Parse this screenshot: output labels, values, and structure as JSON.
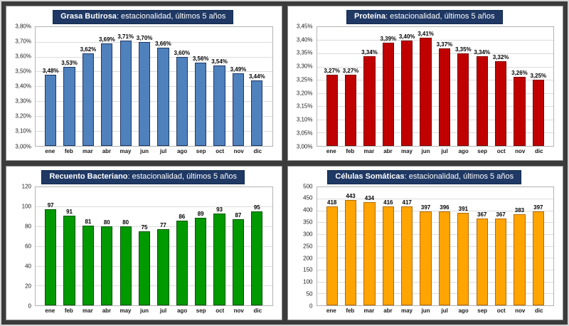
{
  "frame": {
    "background": "#3b3b3b",
    "panel_background": "#ffffff",
    "title_background": "#1f3864"
  },
  "chart_data": [
    {
      "type": "bar",
      "title": "Grasa Butirosa",
      "subtitle": ": estacionalidad, últimos 5 años",
      "categories": [
        "ene",
        "feb",
        "mar",
        "abr",
        "may",
        "jun",
        "jul",
        "ago",
        "sep",
        "oct",
        "nov",
        "dic"
      ],
      "values": [
        3.48,
        3.53,
        3.62,
        3.69,
        3.71,
        3.7,
        3.66,
        3.6,
        3.56,
        3.54,
        3.49,
        3.44
      ],
      "value_labels": [
        "3,48%",
        "3,53%",
        "3,62%",
        "3,69%",
        "3,71%",
        "3,70%",
        "3,66%",
        "3,60%",
        "3,56%",
        "3,54%",
        "3,49%",
        "3,44%"
      ],
      "xlabel": "",
      "ylabel": "",
      "ylim": [
        3.0,
        3.8
      ],
      "ytick_labels": [
        "3,80%",
        "3,70%",
        "3,60%",
        "3,50%",
        "3,40%",
        "3,30%",
        "3,20%",
        "3,10%",
        "3,00%"
      ],
      "color": "#4f81bd",
      "bar_border": "#1f3864",
      "grid": true,
      "legend": false
    },
    {
      "type": "bar",
      "title": "Proteína",
      "subtitle": ": estacionalidad, últimos 5 años",
      "categories": [
        "ene",
        "feb",
        "mar",
        "abr",
        "may",
        "jun",
        "jul",
        "ago",
        "sep",
        "oct",
        "nov",
        "dic"
      ],
      "values": [
        3.27,
        3.27,
        3.34,
        3.39,
        3.4,
        3.41,
        3.37,
        3.35,
        3.34,
        3.32,
        3.26,
        3.25
      ],
      "value_labels": [
        "3,27%",
        "3,27%",
        "3,34%",
        "3,39%",
        "3,40%",
        "3,41%",
        "3,37%",
        "3,35%",
        "3,34%",
        "3,32%",
        "3,26%",
        "3,25%"
      ],
      "xlabel": "",
      "ylabel": "",
      "ylim": [
        3.0,
        3.45
      ],
      "ytick_labels": [
        "3,45%",
        "3,40%",
        "3,35%",
        "3,30%",
        "3,25%",
        "3,20%",
        "3,15%",
        "3,10%",
        "3,05%",
        "3,00%"
      ],
      "color": "#c00000",
      "bar_border": "#7f0000",
      "grid": true,
      "legend": false
    },
    {
      "type": "bar",
      "title": "Recuento Bacteriano",
      "subtitle": ": estacionalidad, últimos 5 años",
      "categories": [
        "ene",
        "feb",
        "mar",
        "abr",
        "may",
        "jun",
        "jul",
        "ago",
        "sep",
        "oct",
        "nov",
        "dic"
      ],
      "values": [
        97,
        91,
        81,
        80,
        80,
        75,
        77,
        86,
        89,
        93,
        87,
        95
      ],
      "value_labels": [
        "97",
        "91",
        "81",
        "80",
        "80",
        "75",
        "77",
        "86",
        "89",
        "93",
        "87",
        "95"
      ],
      "xlabel": "",
      "ylabel": "",
      "ylim": [
        0,
        120
      ],
      "ytick_labels": [
        "120",
        "100",
        "80",
        "60",
        "40",
        "20",
        "0"
      ],
      "color": "#009900",
      "bar_border": "#005500",
      "grid": true,
      "legend": false
    },
    {
      "type": "bar",
      "title": "Células Somáticas",
      "subtitle": ": estacionalidad, últimos 5 años",
      "categories": [
        "ene",
        "feb",
        "mar",
        "abr",
        "may",
        "jun",
        "jul",
        "ago",
        "sep",
        "oct",
        "nov",
        "dic"
      ],
      "values": [
        418,
        443,
        434,
        416,
        417,
        397,
        396,
        391,
        367,
        367,
        383,
        397
      ],
      "value_labels": [
        "418",
        "443",
        "434",
        "416",
        "417",
        "397",
        "396",
        "391",
        "367",
        "367",
        "383",
        "397"
      ],
      "xlabel": "",
      "ylabel": "",
      "ylim": [
        0,
        500
      ],
      "ytick_labels": [
        "500",
        "450",
        "400",
        "350",
        "300",
        "250",
        "200",
        "150",
        "100",
        "50",
        "0"
      ],
      "color": "#ffa400",
      "bar_border": "#b36b00",
      "grid": true,
      "legend": false
    }
  ]
}
